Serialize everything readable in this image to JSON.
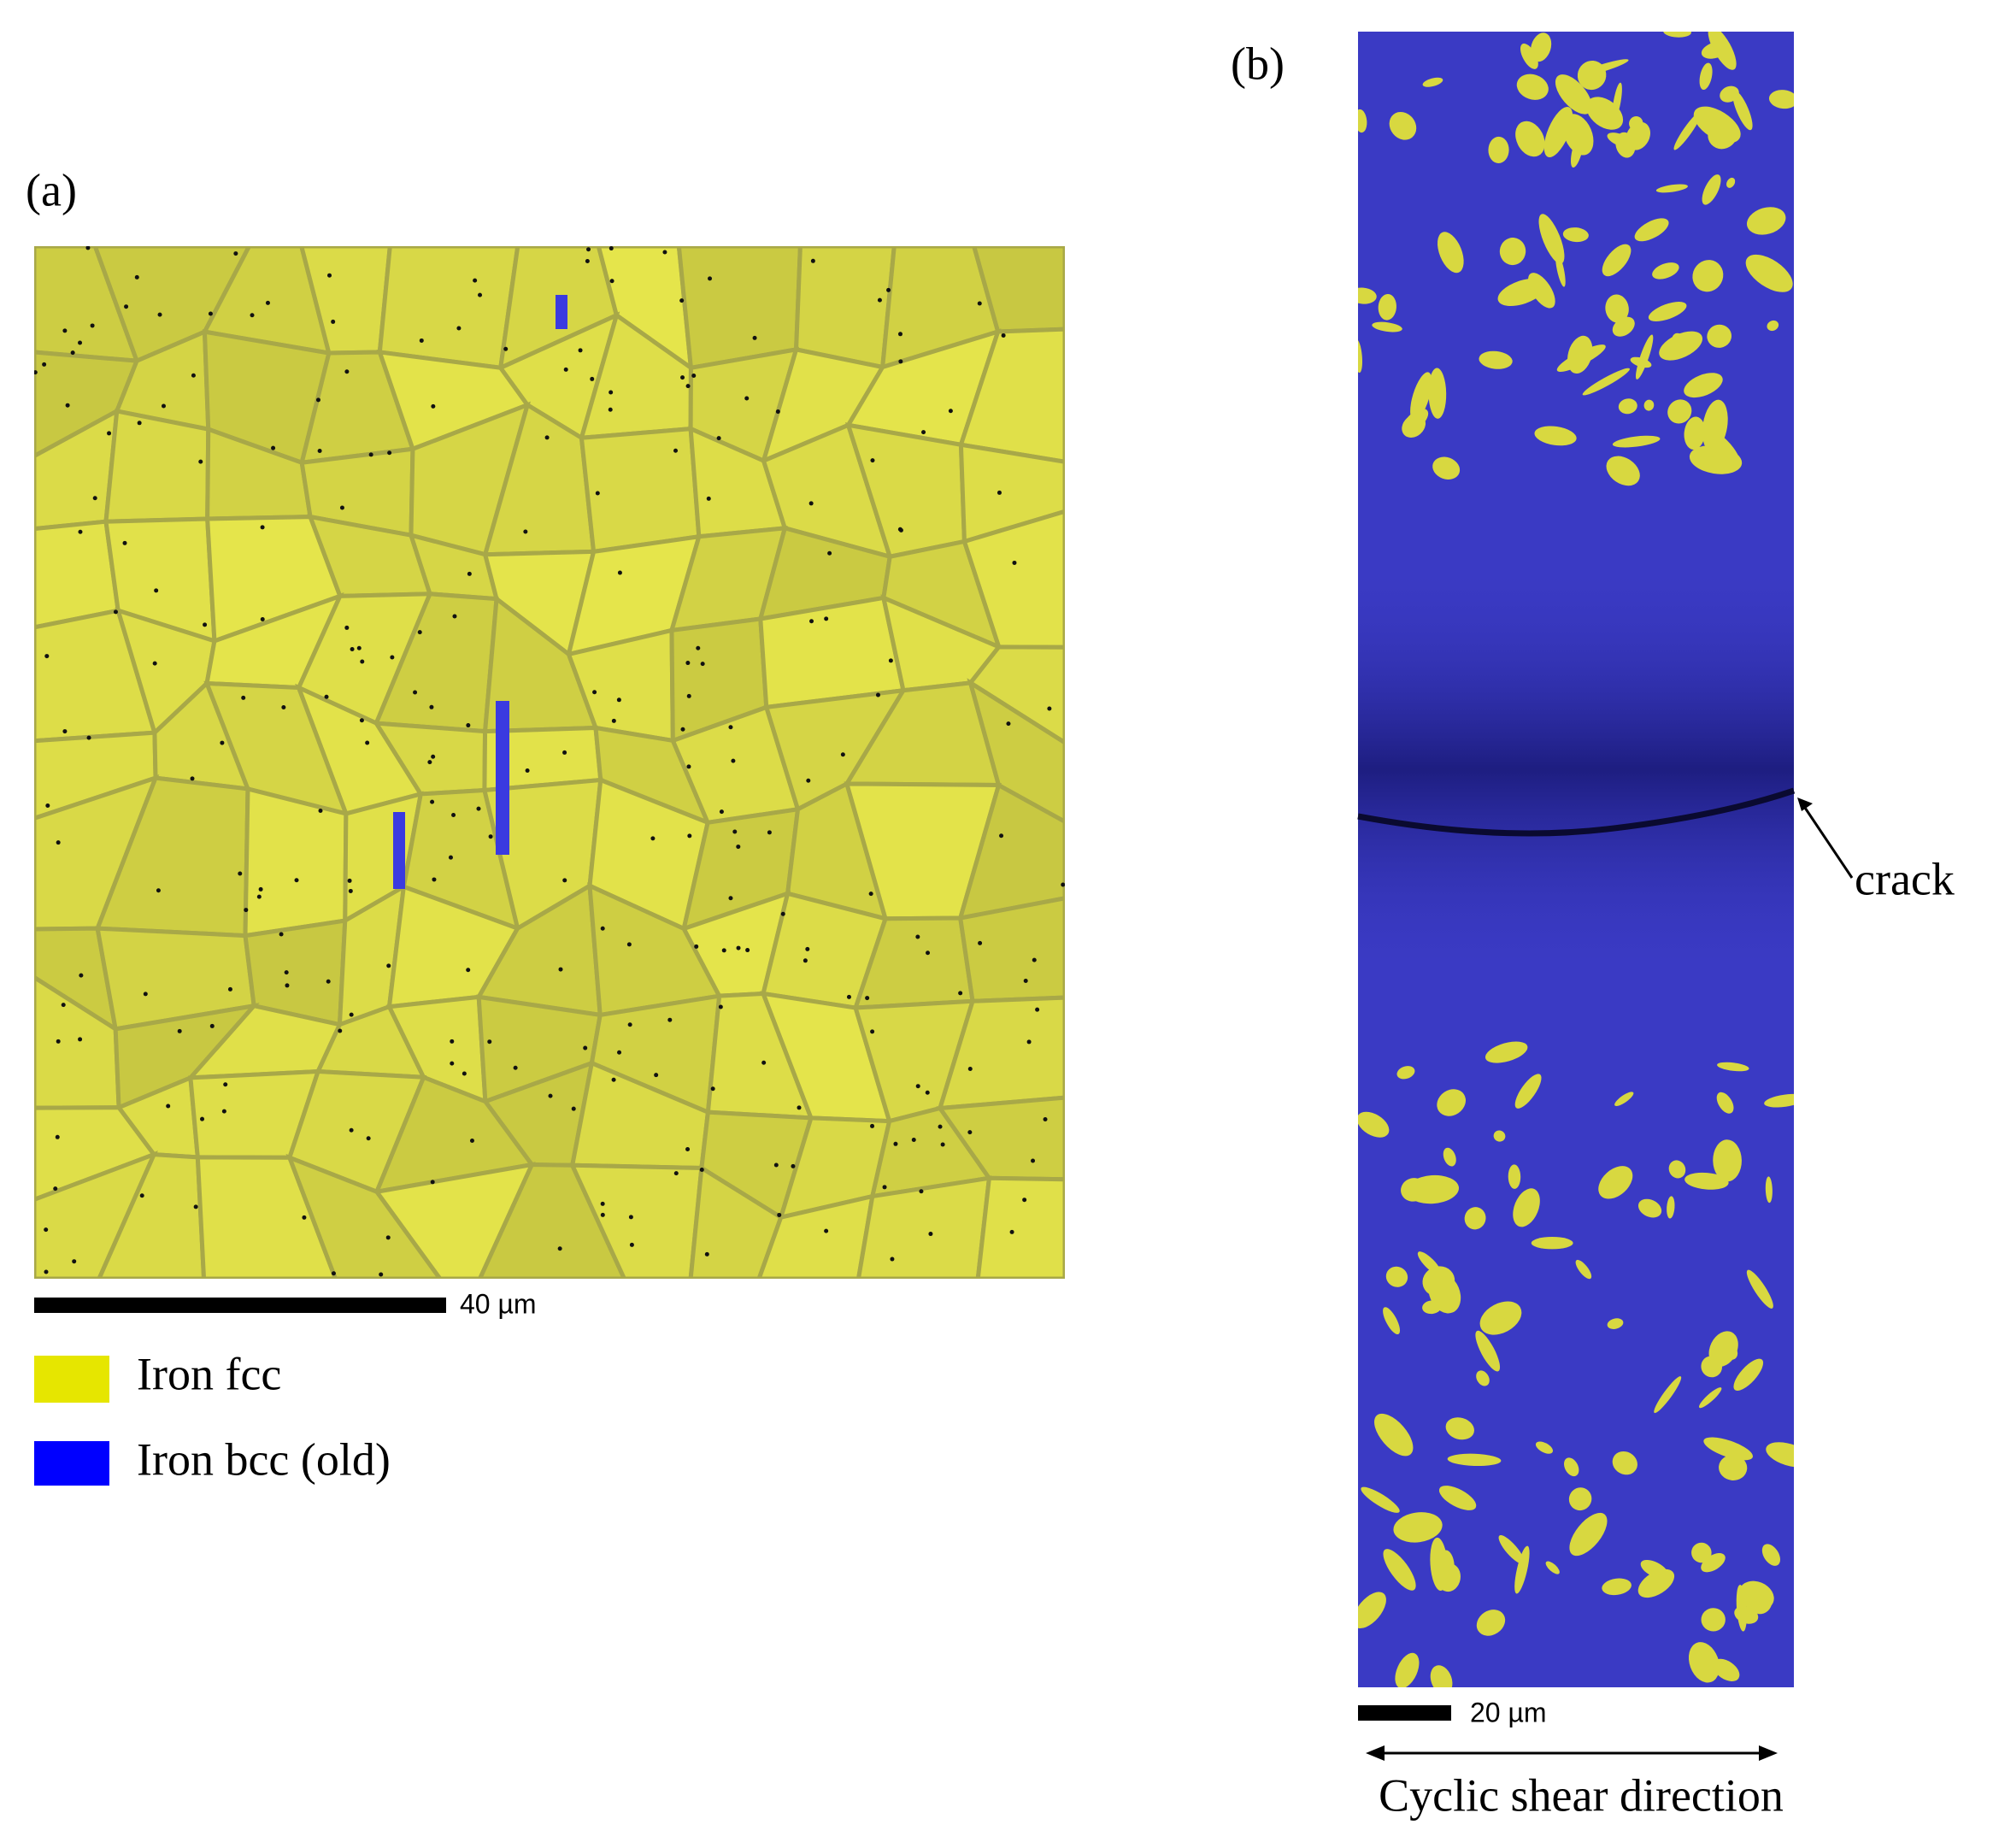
{
  "panel_a": {
    "label": "(a)",
    "scale_bar": "40 µm",
    "legend": [
      "Iron fcc",
      "Iron bcc (old)"
    ]
  },
  "panel_b": {
    "label": "(b)",
    "scale_bar": "20 µm",
    "annotation": "crack",
    "direction": "Cyclic shear direction"
  }
}
